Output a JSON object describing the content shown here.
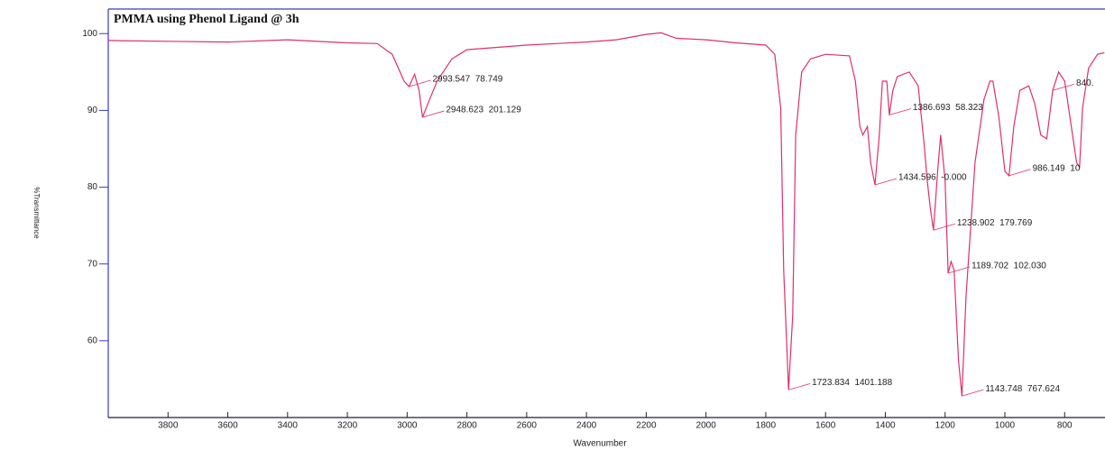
{
  "chart_data": {
    "type": "line",
    "title": "PMMA using Phenol Ligand @ 3h",
    "x_label": "Wavenumber",
    "y_label": "%Transmittance",
    "xlim": [
      4000,
      665
    ],
    "ylim": [
      50,
      103.2
    ],
    "xticks": [
      3800,
      3600,
      3400,
      3200,
      3000,
      2800,
      2600,
      2400,
      2200,
      2000,
      1800,
      1600,
      1400,
      1200,
      1000,
      800
    ],
    "yticks": [
      60,
      70,
      80,
      90,
      100
    ],
    "series": [
      {
        "color": "#e0306a",
        "x": [
          4000,
          3800,
          3600,
          3400,
          3200,
          3100,
          3050,
          3010,
          2993.547,
          2975,
          2960,
          2948.623,
          2930,
          2900,
          2850,
          2800,
          2600,
          2400,
          2300,
          2200,
          2150,
          2100,
          2000,
          1900,
          1800,
          1770,
          1750,
          1740,
          1723.834,
          1710,
          1700,
          1680,
          1650,
          1600,
          1520,
          1500,
          1485,
          1475,
          1460,
          1449,
          1434.596,
          1420,
          1410,
          1395,
          1386.693,
          1375,
          1360,
          1320,
          1290,
          1270,
          1260,
          1250,
          1238.902,
          1225,
          1215,
          1200,
          1189.702,
          1180,
          1170,
          1155,
          1143.748,
          1130,
          1100,
          1070,
          1050,
          1040,
          1020,
          1000,
          986.149,
          970,
          950,
          920,
          900,
          880,
          860,
          840,
          820,
          800,
          760,
          750,
          740,
          720,
          690,
          667
        ],
        "values": [
          99.1,
          99,
          98.9,
          99.2,
          98.8,
          98.7,
          97.3,
          93.8,
          93.1,
          94.7,
          92.6,
          89.1,
          90.9,
          93.8,
          96.7,
          97.9,
          98.5,
          98.9,
          99.2,
          99.9,
          100.1,
          99.4,
          99.2,
          98.8,
          98.5,
          97.3,
          90.3,
          69.2,
          53.6,
          63.3,
          86.8,
          95,
          96.7,
          97.3,
          97.1,
          93.8,
          87.9,
          86.8,
          87.9,
          83.2,
          80.3,
          86.8,
          93.8,
          93.8,
          89.4,
          92.6,
          94.4,
          95,
          93.2,
          85.6,
          80.9,
          77.4,
          74.4,
          82.1,
          86.8,
          80.9,
          68.8,
          70.3,
          69.2,
          57.4,
          52.8,
          65.7,
          83.2,
          91.4,
          93.8,
          93.8,
          89.1,
          82.1,
          81.5,
          87.9,
          92.6,
          93.2,
          90.9,
          86.8,
          86.3,
          92.6,
          95,
          93.8,
          83.2,
          82.6,
          90.3,
          95.5,
          97.3,
          97.5
        ]
      }
    ],
    "annotations": [
      {
        "text": "2993.547  78.749",
        "x": 2993.547,
        "y": 93.1
      },
      {
        "text": "2948.623  201.129",
        "x": 2948.623,
        "y": 89.1
      },
      {
        "text": "1723.834  1401.188",
        "x": 1723.834,
        "y": 53.6
      },
      {
        "text": "1434.596  -0.000",
        "x": 1434.596,
        "y": 80.3
      },
      {
        "text": "1386.693  58.323",
        "x": 1386.693,
        "y": 89.4
      },
      {
        "text": "1238.902  179.769",
        "x": 1238.902,
        "y": 74.4
      },
      {
        "text": "1189.702  102.030",
        "x": 1189.702,
        "y": 68.8
      },
      {
        "text": "1143.748  767.624",
        "x": 1143.748,
        "y": 52.8
      },
      {
        "text": "986.149  10",
        "x": 986.149,
        "y": 81.5
      },
      {
        "text": "840.",
        "x": 840,
        "y": 92.6
      }
    ]
  }
}
